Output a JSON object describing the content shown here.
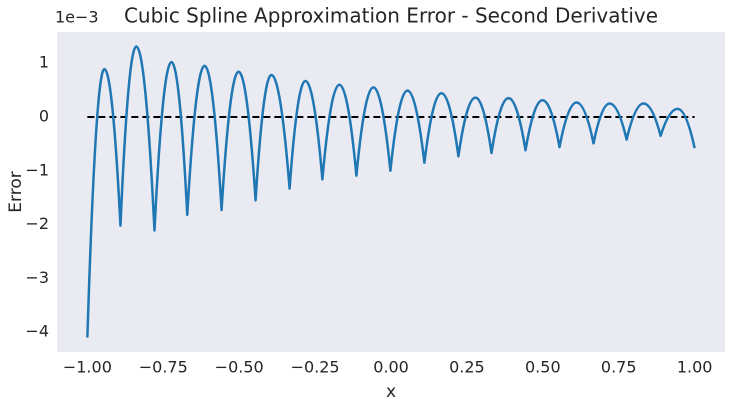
{
  "chart_data": {
    "type": "line",
    "title": "Cubic Spline Approximation Error - Second Derivative",
    "x_label": "x",
    "y_label": "Error",
    "y_offset_text": "1e−3",
    "xlim": [
      -1.1,
      1.1
    ],
    "ylim": [
      -4.37,
      1.58
    ],
    "xticks": [
      {
        "value": -1.0,
        "label": "−1.00"
      },
      {
        "value": -0.75,
        "label": "−0.75"
      },
      {
        "value": -0.5,
        "label": "−0.50"
      },
      {
        "value": -0.25,
        "label": "−0.25"
      },
      {
        "value": 0,
        "label": "0.00"
      },
      {
        "value": 0.25,
        "label": "0.25"
      },
      {
        "value": 0.5,
        "label": "0.50"
      },
      {
        "value": 0.75,
        "label": "0.75"
      },
      {
        "value": 1.0,
        "label": "1.00"
      }
    ],
    "yticks": [
      {
        "value": -4,
        "label": "−4"
      },
      {
        "value": -3,
        "label": "−3"
      },
      {
        "value": -2,
        "label": "−2"
      },
      {
        "value": -1,
        "label": "−1"
      },
      0,
      1
    ],
    "grid": false,
    "background": "#eaeaf2",
    "reference_line": {
      "y": 0,
      "x": [
        -1.0,
        1.0
      ],
      "color": "#000000"
    },
    "x": [
      -1.0,
      -0.944,
      -0.891,
      -0.839,
      -0.779,
      -0.723,
      -0.671,
      -0.614,
      -0.558,
      -0.502,
      -0.446,
      -0.394,
      -0.334,
      -0.282,
      -0.226,
      -0.17,
      -0.114,
      -0.058,
      -0.002,
      0.054,
      0.11,
      0.166,
      0.222,
      0.278,
      0.331,
      0.387,
      0.443,
      0.499,
      0.555,
      0.611,
      0.667,
      0.72,
      0.776,
      0.832,
      0.888,
      0.944,
      1.0
    ],
    "series": [
      {
        "color": "#1f77b4",
        "values": [
          -4.1,
          0.89,
          -2.02,
          1.31,
          -2.11,
          1.02,
          -1.82,
          0.95,
          -1.73,
          0.84,
          -1.55,
          0.78,
          -1.33,
          0.67,
          -1.16,
          0.6,
          -1.09,
          0.55,
          -1.0,
          0.49,
          -0.85,
          0.44,
          -0.73,
          0.36,
          -0.67,
          0.35,
          -0.62,
          0.31,
          -0.56,
          0.27,
          -0.49,
          0.25,
          -0.42,
          0.25,
          -0.35,
          0.15,
          -0.58
        ]
      }
    ]
  }
}
